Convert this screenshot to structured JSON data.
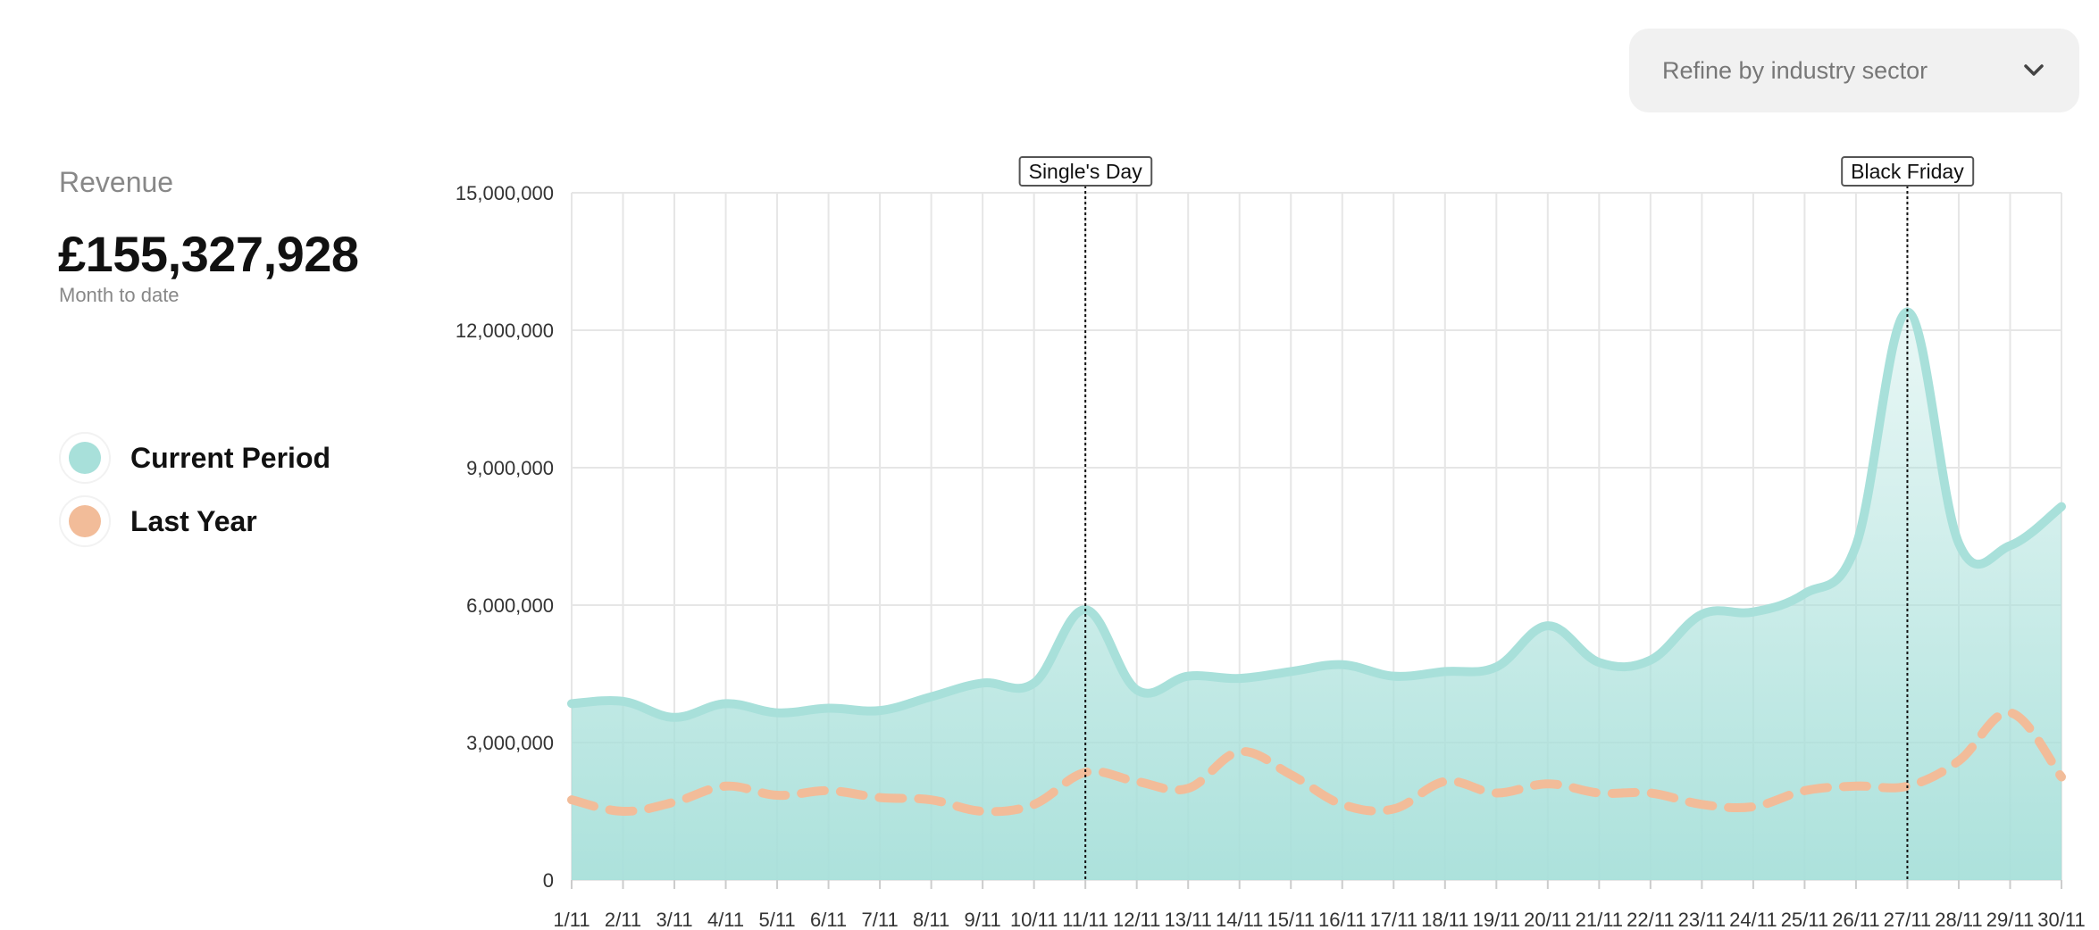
{
  "filter": {
    "label": "Refine by industry sector",
    "icon": "chevron-down-icon"
  },
  "metric": {
    "title": "Revenue",
    "value": "£155,327,928",
    "subtitle": "Month to date"
  },
  "legend": [
    {
      "label": "Current Period",
      "color": "#a8e0da"
    },
    {
      "label": "Last Year",
      "color": "#f2bc99"
    }
  ],
  "chart_data": {
    "type": "area",
    "title": "",
    "xlabel": "",
    "ylabel": "",
    "x": [
      "1/11",
      "2/11",
      "3/11",
      "4/11",
      "5/11",
      "6/11",
      "7/11",
      "8/11",
      "9/11",
      "10/11",
      "11/11",
      "12/11",
      "13/11",
      "14/11",
      "15/11",
      "16/11",
      "17/11",
      "18/11",
      "19/11",
      "20/11",
      "21/11",
      "22/11",
      "23/11",
      "24/11",
      "25/11",
      "26/11",
      "27/11",
      "28/11",
      "29/11",
      "30/11"
    ],
    "yticks": [
      0,
      3000000,
      6000000,
      9000000,
      12000000,
      15000000
    ],
    "ytick_labels": [
      "0",
      "3,000,000",
      "6,000,000",
      "9,000,000",
      "12,000,000",
      "15,000,000"
    ],
    "ylim": [
      0,
      15000000
    ],
    "grid": true,
    "series": [
      {
        "name": "Current Period",
        "style": "solid-area",
        "color": "#a8e0da",
        "values": [
          3850000,
          3900000,
          3550000,
          3850000,
          3650000,
          3750000,
          3700000,
          4000000,
          4300000,
          4300000,
          5900000,
          4150000,
          4450000,
          4400000,
          4550000,
          4700000,
          4450000,
          4550000,
          4650000,
          5550000,
          4750000,
          4800000,
          5800000,
          5850000,
          6250000,
          7300000,
          12400000,
          7350000,
          7300000,
          8150000
        ]
      },
      {
        "name": "Last Year",
        "style": "dashed",
        "color": "#f2bc99",
        "values": [
          1750000,
          1500000,
          1700000,
          2050000,
          1850000,
          1950000,
          1800000,
          1750000,
          1500000,
          1650000,
          2350000,
          2150000,
          2000000,
          2800000,
          2300000,
          1650000,
          1550000,
          2150000,
          1900000,
          2100000,
          1900000,
          1900000,
          1650000,
          1600000,
          1950000,
          2050000,
          2050000,
          2600000,
          3650000,
          2250000
        ]
      }
    ],
    "annotations": [
      {
        "label": "Single's Day",
        "x": "11/11"
      },
      {
        "label": "Black Friday",
        "x": "27/11"
      }
    ]
  }
}
